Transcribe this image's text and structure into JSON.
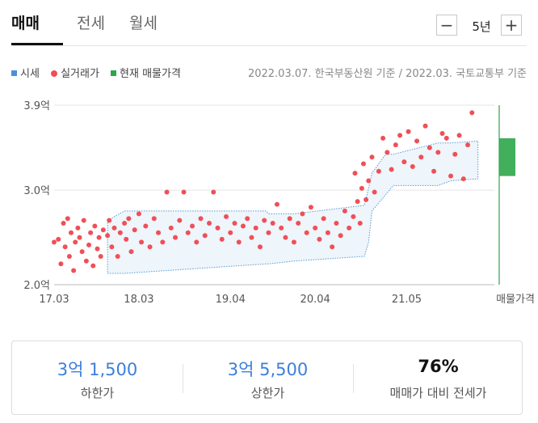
{
  "tabs": [
    {
      "label": "매매",
      "active": true
    },
    {
      "label": "전세",
      "active": false
    },
    {
      "label": "월세",
      "active": false
    }
  ],
  "period": {
    "minus": "−",
    "value": "5년",
    "plus": "+"
  },
  "legend": [
    {
      "label": "시세",
      "color": "#4a90d9",
      "shape": "square"
    },
    {
      "label": "실거래가",
      "color": "#f04f57",
      "shape": "circle"
    },
    {
      "label": "현재 매물가격",
      "color": "#2ca64a",
      "shape": "square"
    }
  ],
  "source_note": "2022.03.07. 한국부동산원 기준 / 2022.03. 국토교통부 기준",
  "chart_data": {
    "type": "scatter",
    "x_unit": "year-month (fractional year)",
    "xlim": [
      2017.17,
      2022.25
    ],
    "ylim": [
      2.0,
      3.9
    ],
    "ytick_values": [
      2.0,
      3.0,
      3.9
    ],
    "yticks": [
      "2.0억",
      "3.0억",
      "3.9억"
    ],
    "xtick_values": [
      2017.17,
      2018.17,
      2019.25,
      2020.25,
      2021.33
    ],
    "xticks": [
      "17.03",
      "18.03",
      "19.04",
      "20.04",
      "21.05"
    ],
    "current_listing_label": "매물가격",
    "current_listing": {
      "low": 3.15,
      "high": 3.55,
      "color": "#2ca64a"
    },
    "price_band": {
      "name": "시세",
      "x": [
        2017.8,
        2018.0,
        2019.67,
        2019.7,
        2020.0,
        2020.83,
        2020.88,
        2020.92,
        2021.08,
        2021.17,
        2021.7,
        2021.85,
        2022.17
      ],
      "low": [
        2.12,
        2.12,
        2.22,
        2.22,
        2.25,
        2.3,
        2.45,
        2.78,
        2.95,
        3.05,
        3.05,
        3.1,
        3.12
      ],
      "high": [
        2.68,
        2.78,
        2.78,
        2.75,
        2.75,
        2.84,
        3.02,
        3.18,
        3.38,
        3.38,
        3.5,
        3.5,
        3.52
      ]
    },
    "series": [
      {
        "name": "실거래가",
        "color": "#f04f57",
        "x": [
          2017.17,
          2017.22,
          2017.25,
          2017.28,
          2017.3,
          2017.33,
          2017.35,
          2017.37,
          2017.4,
          2017.42,
          2017.45,
          2017.47,
          2017.5,
          2017.52,
          2017.55,
          2017.58,
          2017.6,
          2017.63,
          2017.65,
          2017.68,
          2017.7,
          2017.72,
          2017.75,
          2017.8,
          2017.82,
          2017.85,
          2017.88,
          2017.92,
          2017.95,
          2018.0,
          2018.02,
          2018.05,
          2018.08,
          2018.12,
          2018.17,
          2018.2,
          2018.25,
          2018.3,
          2018.35,
          2018.4,
          2018.45,
          2018.5,
          2018.55,
          2018.6,
          2018.65,
          2018.7,
          2018.75,
          2018.8,
          2018.85,
          2018.9,
          2018.95,
          2019.0,
          2019.05,
          2019.1,
          2019.15,
          2019.2,
          2019.25,
          2019.3,
          2019.35,
          2019.4,
          2019.45,
          2019.5,
          2019.55,
          2019.6,
          2019.65,
          2019.7,
          2019.75,
          2019.8,
          2019.85,
          2019.9,
          2019.95,
          2020.0,
          2020.05,
          2020.1,
          2020.15,
          2020.2,
          2020.25,
          2020.3,
          2020.35,
          2020.4,
          2020.45,
          2020.5,
          2020.55,
          2020.6,
          2020.65,
          2020.7,
          2020.72,
          2020.75,
          2020.78,
          2020.8,
          2020.82,
          2020.85,
          2020.88,
          2020.92,
          2020.95,
          2021.0,
          2021.05,
          2021.1,
          2021.15,
          2021.2,
          2021.25,
          2021.3,
          2021.35,
          2021.4,
          2021.45,
          2021.5,
          2021.55,
          2021.6,
          2021.65,
          2021.7,
          2021.75,
          2021.8,
          2021.85,
          2021.9,
          2021.95,
          2022.0,
          2022.05,
          2022.1
        ],
        "y": [
          2.45,
          2.48,
          2.22,
          2.65,
          2.4,
          2.7,
          2.3,
          2.55,
          2.15,
          2.45,
          2.6,
          2.5,
          2.35,
          2.68,
          2.25,
          2.42,
          2.55,
          2.2,
          2.62,
          2.38,
          2.5,
          2.3,
          2.58,
          2.52,
          2.68,
          2.4,
          2.6,
          2.3,
          2.55,
          2.65,
          2.48,
          2.7,
          2.35,
          2.58,
          2.75,
          2.45,
          2.62,
          2.4,
          2.7,
          2.55,
          2.45,
          2.98,
          2.6,
          2.5,
          2.68,
          2.98,
          2.55,
          2.62,
          2.45,
          2.7,
          2.52,
          2.65,
          2.98,
          2.6,
          2.48,
          2.72,
          2.55,
          2.65,
          2.45,
          2.62,
          2.7,
          2.5,
          2.6,
          2.4,
          2.68,
          2.55,
          2.65,
          2.85,
          2.6,
          2.5,
          2.7,
          2.45,
          2.65,
          2.75,
          2.55,
          2.82,
          2.6,
          2.48,
          2.7,
          2.55,
          2.4,
          2.65,
          2.52,
          2.78,
          2.6,
          2.72,
          3.18,
          2.88,
          2.65,
          3.02,
          3.28,
          2.9,
          3.1,
          3.35,
          2.98,
          3.2,
          3.55,
          3.4,
          3.22,
          3.48,
          3.58,
          3.3,
          3.62,
          3.25,
          3.52,
          3.35,
          3.68,
          3.45,
          3.2,
          3.4,
          3.6,
          3.55,
          3.15,
          3.38,
          3.58,
          3.12,
          3.48,
          3.82
        ]
      }
    ]
  },
  "summary": [
    {
      "value": "3억 1,500",
      "label": "하한가",
      "color": "#3d7fdc"
    },
    {
      "value": "3억 5,500",
      "label": "상한가",
      "color": "#3d7fdc"
    },
    {
      "value": "76%",
      "label": "매매가 대비 전세가",
      "color": "#111111"
    }
  ]
}
